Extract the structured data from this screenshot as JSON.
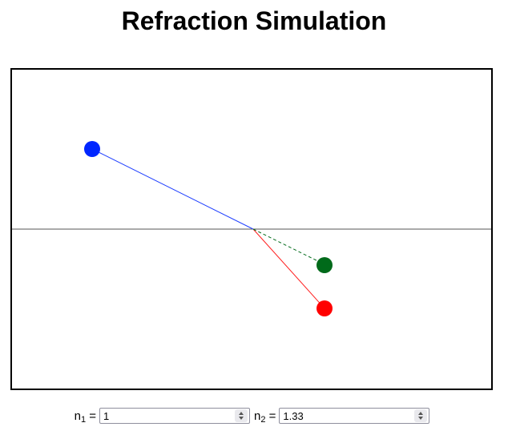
{
  "page": {
    "title": "Refraction Simulation"
  },
  "simulation": {
    "colors": {
      "source": "#0026ff",
      "incident_ray": "#2040ff",
      "refracted_point": "#ff0000",
      "refracted_ray": "#ff2020",
      "unrefracted_point": "#006a1a",
      "unrefracted_ray": "#006a1a",
      "interface": "#555555",
      "border": "#000000"
    }
  },
  "controls": {
    "n1": {
      "label_main": "n",
      "label_sub": "1",
      "label_eq": " =",
      "value": "1"
    },
    "n2": {
      "label_main": "n",
      "label_sub": "2",
      "label_eq": " =",
      "value": "1.33"
    }
  }
}
